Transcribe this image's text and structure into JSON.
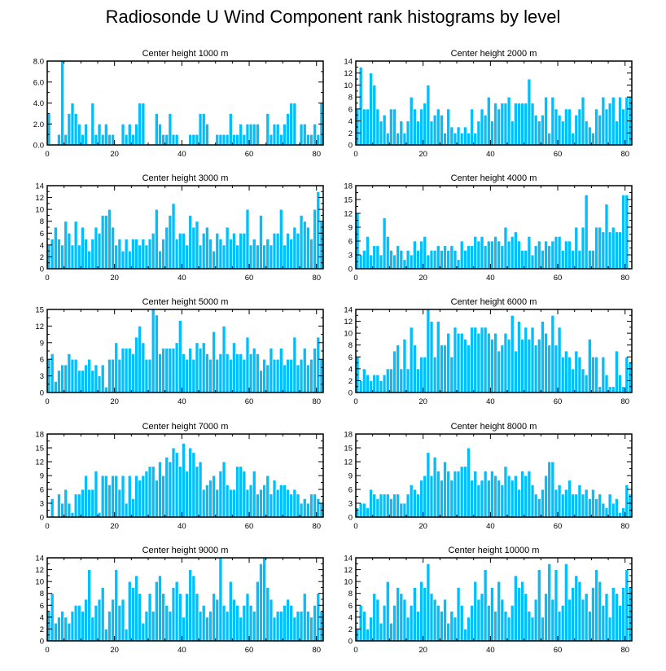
{
  "figure": {
    "title": "Radiosonde U Wind Component rank histograms by level",
    "bar_color": "#00bfff"
  },
  "chart_data": [
    {
      "type": "bar",
      "title": "Center height 1000 m",
      "xlim": [
        0,
        82
      ],
      "ylim": [
        0,
        8
      ],
      "xticks": [
        0,
        20,
        40,
        60,
        80
      ],
      "yticks": [
        0,
        2,
        4,
        6,
        8
      ],
      "ytick_labels": [
        "0.0",
        "2.0",
        "4.0",
        "6.0",
        "8.0"
      ],
      "values": [
        3,
        0,
        0,
        1,
        8,
        1,
        3,
        4,
        3,
        2,
        1,
        2,
        0,
        4,
        1,
        2,
        1,
        2,
        1,
        1,
        0,
        0,
        2,
        1,
        2,
        1,
        2,
        4,
        4,
        0,
        0,
        0,
        3,
        2,
        1,
        1,
        3,
        1,
        1,
        0,
        0,
        0,
        1,
        1,
        1,
        3,
        3,
        2,
        0,
        0,
        1,
        1,
        1,
        1,
        3,
        1,
        1,
        2,
        1,
        2,
        2,
        2,
        2,
        0,
        0,
        3,
        1,
        2,
        2,
        1,
        2,
        3,
        4,
        4,
        0,
        2,
        2,
        1,
        1,
        2,
        1,
        4,
        0
      ]
    },
    {
      "type": "bar",
      "title": "Center height 2000 m",
      "xlim": [
        0,
        82
      ],
      "ylim": [
        0,
        14
      ],
      "xticks": [
        0,
        20,
        40,
        60,
        80
      ],
      "yticks": [
        0,
        2,
        4,
        6,
        8,
        10,
        12,
        14
      ],
      "ytick_labels": [
        "0",
        "2",
        "4",
        "6",
        "8",
        "10",
        "12",
        "14"
      ],
      "values": [
        6,
        13,
        6,
        6,
        12,
        10,
        6,
        4,
        5,
        2,
        6,
        6,
        2,
        4,
        2,
        4,
        8,
        6,
        4,
        6,
        7,
        10,
        4,
        5,
        6,
        5,
        2,
        6,
        3,
        2,
        3,
        2,
        3,
        2,
        6,
        2,
        4,
        6,
        5,
        8,
        4,
        7,
        6,
        7,
        7,
        8,
        4,
        7,
        7,
        7,
        7,
        11,
        7,
        5,
        4,
        5,
        8,
        2,
        8,
        6,
        5,
        4,
        6,
        6,
        2,
        5,
        6,
        8,
        4,
        3,
        2,
        6,
        5,
        8,
        6,
        7,
        8,
        4,
        8,
        6,
        8,
        8,
        0
      ]
    },
    {
      "type": "bar",
      "title": "Center height 3000 m",
      "xlim": [
        0,
        82
      ],
      "ylim": [
        0,
        14
      ],
      "xticks": [
        0,
        20,
        40,
        60,
        80
      ],
      "yticks": [
        0,
        2,
        4,
        6,
        8,
        10,
        12,
        14
      ],
      "ytick_labels": [
        "0",
        "2",
        "4",
        "6",
        "8",
        "10",
        "12",
        "14"
      ],
      "values": [
        4,
        5,
        7,
        5,
        4,
        8,
        6,
        4,
        8,
        4,
        7,
        5,
        3,
        5,
        7,
        6,
        9,
        9,
        10,
        7,
        4,
        5,
        3,
        5,
        3,
        5,
        5,
        4,
        5,
        4,
        5,
        6,
        10,
        3,
        5,
        7,
        9,
        11,
        5,
        6,
        6,
        4,
        9,
        7,
        8,
        4,
        6,
        7,
        5,
        3,
        6,
        5,
        4,
        7,
        5,
        6,
        4,
        6,
        6,
        10,
        4,
        5,
        4,
        9,
        4,
        5,
        4,
        6,
        6,
        10,
        4,
        6,
        5,
        7,
        6,
        9,
        8,
        7,
        5,
        10,
        13,
        8,
        0
      ]
    },
    {
      "type": "bar",
      "title": "Center height 4000 m",
      "xlim": [
        0,
        82
      ],
      "ylim": [
        0,
        18
      ],
      "xticks": [
        0,
        20,
        40,
        60,
        80
      ],
      "yticks": [
        0,
        3,
        6,
        9,
        12,
        15,
        18
      ],
      "ytick_labels": [
        "0",
        "3",
        "6",
        "9",
        "12",
        "15",
        "18"
      ],
      "values": [
        12,
        3,
        4,
        7,
        3,
        5,
        5,
        3,
        11,
        7,
        4,
        3,
        5,
        4,
        2,
        4,
        3,
        6,
        4,
        6,
        7,
        3,
        4,
        4,
        5,
        4,
        5,
        4,
        5,
        4,
        2,
        6,
        4,
        5,
        5,
        7,
        6,
        7,
        5,
        6,
        6,
        7,
        6,
        5,
        9,
        6,
        7,
        8,
        6,
        4,
        4,
        7,
        3,
        5,
        6,
        4,
        6,
        5,
        6,
        7,
        7,
        4,
        6,
        6,
        4,
        9,
        4,
        9,
        16,
        4,
        4,
        9,
        9,
        8,
        14,
        8,
        9,
        8,
        8,
        16,
        16,
        0,
        0
      ]
    },
    {
      "type": "bar",
      "title": "Center height 5000 m",
      "xlim": [
        0,
        82
      ],
      "ylim": [
        0,
        15
      ],
      "xticks": [
        0,
        20,
        40,
        60,
        80
      ],
      "yticks": [
        0,
        3,
        6,
        9,
        12,
        15
      ],
      "ytick_labels": [
        "0",
        "3",
        "6",
        "9",
        "12",
        "15"
      ],
      "values": [
        6,
        7,
        2,
        4,
        5,
        5,
        7,
        6,
        6,
        4,
        4,
        5,
        6,
        4,
        5,
        3,
        5,
        1,
        6,
        6,
        9,
        6,
        8,
        8,
        8,
        7,
        10,
        12,
        9,
        6,
        6,
        15,
        14,
        7,
        8,
        8,
        8,
        8,
        9,
        13,
        7,
        6,
        8,
        6,
        9,
        8,
        9,
        7,
        6,
        11,
        6,
        7,
        12,
        7,
        6,
        9,
        7,
        7,
        6,
        10,
        7,
        8,
        7,
        4,
        6,
        5,
        8,
        6,
        6,
        8,
        5,
        6,
        6,
        10,
        5,
        6,
        8,
        5,
        6,
        8,
        10,
        6,
        0
      ]
    },
    {
      "type": "bar",
      "title": "Center height 6000 m",
      "xlim": [
        0,
        82
      ],
      "ylim": [
        0,
        14
      ],
      "xticks": [
        0,
        20,
        40,
        60,
        80
      ],
      "yticks": [
        0,
        2,
        4,
        6,
        8,
        10,
        12,
        14
      ],
      "ytick_labels": [
        "0",
        "2",
        "4",
        "6",
        "8",
        "10",
        "12",
        "14"
      ],
      "values": [
        6,
        2,
        4,
        3,
        2,
        3,
        3,
        2,
        3,
        4,
        4,
        7,
        8,
        4,
        9,
        4,
        11,
        8,
        4,
        6,
        6,
        14,
        12,
        6,
        12,
        8,
        8,
        10,
        6,
        11,
        10,
        10,
        9,
        8,
        11,
        11,
        10,
        11,
        11,
        10,
        9,
        10,
        7,
        8,
        10,
        9,
        13,
        7,
        12,
        9,
        11,
        9,
        11,
        8,
        9,
        12,
        10,
        8,
        13,
        8,
        11,
        6,
        7,
        6,
        4,
        7,
        6,
        4,
        3,
        9,
        6,
        6,
        1,
        6,
        3,
        1,
        1,
        7,
        3,
        1,
        6,
        5,
        0
      ]
    },
    {
      "type": "bar",
      "title": "Center height 7000 m",
      "xlim": [
        0,
        82
      ],
      "ylim": [
        0,
        18
      ],
      "xticks": [
        0,
        20,
        40,
        60,
        80
      ],
      "yticks": [
        0,
        3,
        6,
        9,
        12,
        15,
        18
      ],
      "ytick_labels": [
        "0",
        "3",
        "6",
        "9",
        "12",
        "15",
        "18"
      ],
      "values": [
        0,
        4,
        0,
        5,
        3,
        6,
        3,
        1,
        5,
        5,
        6,
        9,
        6,
        6,
        10,
        1,
        9,
        9,
        7,
        9,
        9,
        6,
        9,
        3,
        9,
        4,
        9,
        8,
        9,
        10,
        11,
        11,
        8,
        12,
        9,
        13,
        12,
        15,
        14,
        11,
        16,
        10,
        15,
        14,
        11,
        12,
        6,
        7,
        8,
        9,
        6,
        10,
        12,
        7,
        6,
        6,
        11,
        11,
        10,
        6,
        7,
        10,
        5,
        6,
        7,
        9,
        5,
        8,
        6,
        7,
        7,
        6,
        5,
        6,
        5,
        3,
        4,
        3,
        5,
        5,
        4,
        3,
        0
      ]
    },
    {
      "type": "bar",
      "title": "Center height 8000 m",
      "xlim": [
        0,
        82
      ],
      "ylim": [
        0,
        18
      ],
      "xticks": [
        0,
        20,
        40,
        60,
        80
      ],
      "yticks": [
        0,
        3,
        6,
        9,
        12,
        15,
        18
      ],
      "ytick_labels": [
        "0",
        "3",
        "6",
        "9",
        "12",
        "15",
        "18"
      ],
      "values": [
        2,
        3,
        3,
        2,
        6,
        5,
        4,
        5,
        5,
        5,
        4,
        5,
        5,
        3,
        3,
        5,
        7,
        6,
        5,
        8,
        9,
        14,
        9,
        13,
        10,
        8,
        12,
        10,
        8,
        10,
        10,
        11,
        11,
        15,
        8,
        10,
        7,
        8,
        10,
        8,
        10,
        9,
        8,
        7,
        11,
        9,
        8,
        9,
        6,
        10,
        9,
        10,
        7,
        5,
        4,
        6,
        9,
        12,
        12,
        6,
        7,
        5,
        6,
        8,
        5,
        5,
        7,
        5,
        6,
        4,
        6,
        4,
        5,
        3,
        2,
        5,
        3,
        4,
        1,
        2,
        7,
        5,
        0
      ]
    },
    {
      "type": "bar",
      "title": "Center height 9000 m",
      "xlim": [
        0,
        82
      ],
      "ylim": [
        0,
        14
      ],
      "xticks": [
        0,
        20,
        40,
        60,
        80
      ],
      "yticks": [
        0,
        2,
        4,
        6,
        8,
        10,
        12,
        14
      ],
      "ytick_labels": [
        "0",
        "2",
        "4",
        "6",
        "8",
        "10",
        "12",
        "14"
      ],
      "values": [
        5,
        8,
        3,
        4,
        5,
        4,
        3,
        5,
        6,
        6,
        5,
        7,
        12,
        4,
        6,
        7,
        9,
        2,
        5,
        7,
        12,
        6,
        7,
        2,
        10,
        9,
        11,
        8,
        3,
        5,
        8,
        5,
        10,
        11,
        8,
        6,
        5,
        9,
        10,
        8,
        4,
        8,
        12,
        11,
        8,
        5,
        6,
        4,
        5,
        8,
        7,
        14,
        6,
        5,
        10,
        7,
        6,
        4,
        6,
        8,
        6,
        5,
        10,
        13,
        14,
        9,
        7,
        4,
        5,
        5,
        6,
        7,
        6,
        4,
        5,
        5,
        8,
        5,
        4,
        6,
        8,
        5,
        0
      ]
    },
    {
      "type": "bar",
      "title": "Center height 10000 m",
      "xlim": [
        0,
        82
      ],
      "ylim": [
        0,
        14
      ],
      "xticks": [
        0,
        20,
        40,
        60,
        80
      ],
      "yticks": [
        0,
        2,
        4,
        6,
        8,
        10,
        12,
        14
      ],
      "ytick_labels": [
        "0",
        "2",
        "4",
        "6",
        "8",
        "10",
        "12",
        "14"
      ],
      "values": [
        2,
        6,
        5,
        2,
        4,
        8,
        7,
        3,
        6,
        10,
        3,
        6,
        9,
        8,
        7,
        4,
        6,
        9,
        5,
        10,
        9,
        13,
        8,
        7,
        6,
        5,
        7,
        3,
        5,
        4,
        9,
        6,
        2,
        4,
        6,
        10,
        7,
        8,
        12,
        6,
        9,
        5,
        10,
        7,
        5,
        4,
        6,
        11,
        9,
        10,
        8,
        5,
        4,
        7,
        12,
        4,
        8,
        13,
        7,
        12,
        5,
        6,
        13,
        7,
        9,
        11,
        10,
        7,
        8,
        5,
        9,
        12,
        10,
        6,
        8,
        4,
        9,
        8,
        6,
        9,
        12,
        9,
        0
      ]
    }
  ]
}
